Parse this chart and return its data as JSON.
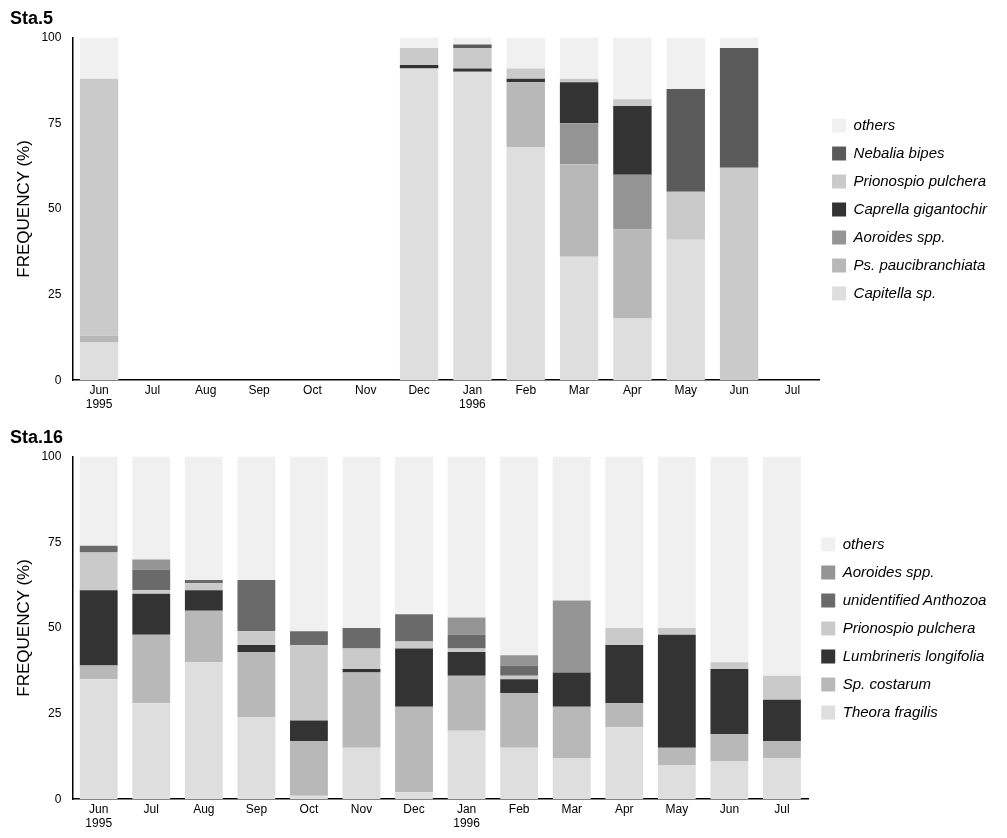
{
  "chart_data": [
    {
      "type": "bar",
      "title": "Sta.5",
      "ylabel": "FREQUENCY (%)",
      "stacked": true,
      "legend": "right",
      "categories": [
        "Jun\n1995",
        "Jul",
        "Aug",
        "Sep",
        "Oct",
        "Nov",
        "Dec",
        "Jan\n1996",
        "Feb",
        "Mar",
        "Apr",
        "May",
        "Jun",
        "Jul"
      ],
      "ylim": [
        0,
        100
      ],
      "yticks": [
        0,
        25,
        50,
        75,
        100
      ],
      "series": [
        {
          "name": "Capitella sp.",
          "color": "#dedede",
          "values": [
            11,
            null,
            null,
            null,
            null,
            null,
            91,
            90,
            68,
            36,
            18,
            41,
            0,
            null
          ]
        },
        {
          "name": "Ps. paucibranchiata",
          "color": "#b8b8b8",
          "values": [
            2,
            null,
            null,
            null,
            null,
            null,
            0,
            0,
            19,
            27,
            26,
            0,
            0,
            null
          ]
        },
        {
          "name": "Aoroides spp.",
          "color": "#959595",
          "values": [
            0,
            null,
            null,
            null,
            null,
            null,
            0,
            0,
            0,
            12,
            16,
            0,
            0,
            null
          ]
        },
        {
          "name": "Caprella gigantochir",
          "color": "#333333",
          "values": [
            0,
            null,
            null,
            null,
            null,
            null,
            1,
            1,
            1,
            12,
            20,
            0,
            0,
            null
          ]
        },
        {
          "name": "Prionospio pulchera",
          "color": "#cacaca",
          "values": [
            75,
            null,
            null,
            null,
            null,
            null,
            5,
            6,
            3,
            1,
            2,
            14,
            62,
            null
          ]
        },
        {
          "name": "Nebalia bipes",
          "color": "#5a5a5a",
          "values": [
            0,
            null,
            null,
            null,
            null,
            null,
            0,
            1,
            0,
            0,
            0,
            30,
            35,
            null
          ]
        },
        {
          "name": "others",
          "color": "#f0f0f0",
          "values": [
            12,
            null,
            null,
            null,
            null,
            null,
            3,
            2,
            9,
            12,
            18,
            15,
            3,
            null
          ]
        }
      ]
    },
    {
      "type": "bar",
      "title": "Sta.16",
      "ylabel": "FREQUENCY (%)",
      "stacked": true,
      "legend": "right",
      "categories": [
        "Jun\n1995",
        "Jul",
        "Aug",
        "Sep",
        "Oct",
        "Nov",
        "Dec",
        "Jan\n1996",
        "Feb",
        "Mar",
        "Apr",
        "May",
        "Jun",
        "Jul"
      ],
      "ylim": [
        0,
        100
      ],
      "yticks": [
        0,
        25,
        50,
        75,
        100
      ],
      "series": [
        {
          "name": "Theora fragilis",
          "color": "#dedede",
          "values": [
            35,
            28,
            40,
            24,
            1,
            15,
            2,
            20,
            15,
            12,
            21,
            10,
            11,
            12
          ]
        },
        {
          "name": "Sp. costarum",
          "color": "#b8b8b8",
          "values": [
            4,
            20,
            15,
            19,
            16,
            22,
            25,
            16,
            16,
            15,
            7,
            5,
            8,
            5
          ]
        },
        {
          "name": "Lumbrineris longifolia",
          "color": "#333333",
          "values": [
            22,
            12,
            6,
            2,
            6,
            1,
            17,
            7,
            4,
            10,
            17,
            33,
            19,
            12
          ]
        },
        {
          "name": "Prionospio pulchera",
          "color": "#cacaca",
          "values": [
            11,
            1,
            2,
            4,
            22,
            6,
            2,
            1,
            1,
            0,
            5,
            2,
            2,
            7
          ]
        },
        {
          "name": "unidentified Anthozoa",
          "color": "#6a6a6a",
          "values": [
            2,
            6,
            1,
            15,
            4,
            6,
            8,
            4,
            3,
            0,
            0,
            0,
            0,
            0
          ]
        },
        {
          "name": "Aoroides spp.",
          "color": "#959595",
          "values": [
            0,
            3,
            0,
            0,
            0,
            0,
            0,
            5,
            3,
            21,
            0,
            0,
            0,
            0
          ]
        },
        {
          "name": "others",
          "color": "#f0f0f0",
          "values": [
            26,
            30,
            36,
            36,
            51,
            50,
            46,
            47,
            58,
            42,
            50,
            50,
            60,
            64
          ]
        }
      ]
    }
  ]
}
